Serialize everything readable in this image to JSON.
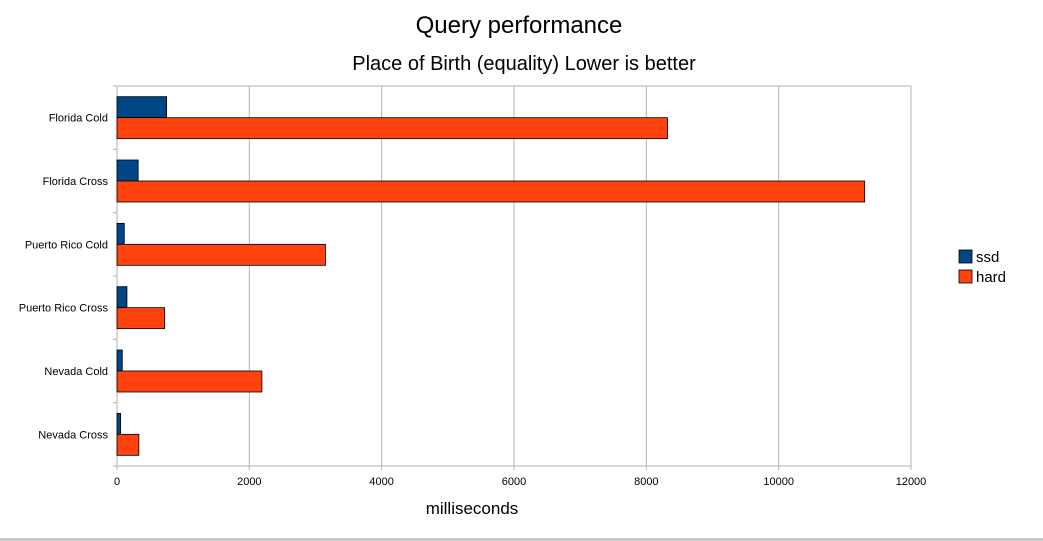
{
  "chart_data": {
    "type": "bar",
    "orientation": "horizontal",
    "title": "Query performance",
    "subtitle": "Place of Birth (equality) Lower is better",
    "xlabel": "milliseconds",
    "ylabel": "",
    "xlim": [
      0,
      12000
    ],
    "x_ticks": [
      "0",
      "2000",
      "4000",
      "6000",
      "8000",
      "10000",
      "12000"
    ],
    "grid": true,
    "legend_position": "right",
    "categories": [
      "Florida Cold",
      "Florida Cross",
      "Puerto Rico Cold",
      "Puerto Rico Cross",
      "Nevada Cold",
      "Nevada Cross"
    ],
    "series": [
      {
        "name": "ssd",
        "color": "#004586",
        "values": [
          750,
          320,
          110,
          150,
          80,
          55
        ]
      },
      {
        "name": "hard",
        "color": "#ff420e",
        "values": [
          8320,
          11300,
          3150,
          720,
          2190,
          330
        ]
      }
    ]
  }
}
